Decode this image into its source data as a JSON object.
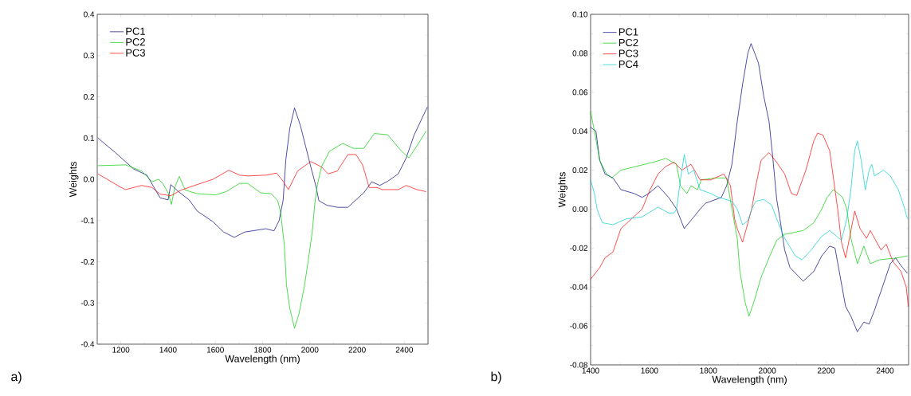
{
  "chart_data": [
    {
      "type": "line",
      "xlabel": "Wavelength (nm)",
      "ylabel": "Weights",
      "annotations": [
        "a)"
      ],
      "legend": "top left",
      "grid": false,
      "xlim": [
        1100,
        2500
      ],
      "xticks": [
        1200,
        1400,
        1600,
        1800,
        2000,
        2200,
        2400
      ],
      "ylim": [
        -0.4,
        0.4
      ],
      "yticks": [
        {
          "value": -0.4,
          "label": "-0.4"
        },
        {
          "value": -0.3,
          "label": "-0.3"
        },
        {
          "value": -0.2,
          "label": "-0.2"
        },
        {
          "value": -0.1,
          "label": "-0.1"
        },
        {
          "value": 0,
          "label": "0.0"
        },
        {
          "value": 0.1,
          "label": "0.1"
        },
        {
          "value": 0.2,
          "label": "0.2"
        },
        {
          "value": 0.3,
          "label": "0.3"
        },
        {
          "value": 0.4,
          "label": "0.4"
        }
      ],
      "series": [
        {
          "name": "PC1",
          "color": "#000080",
          "x": [
            1103,
            1176,
            1254,
            1310,
            1366,
            1400,
            1411,
            1444,
            1489,
            1523,
            1590,
            1635,
            1680,
            1724,
            1814,
            1848,
            1870,
            1887,
            1898,
            1915,
            1935,
            1960,
            1982,
            2004,
            2027,
            2038,
            2072,
            2116,
            2161,
            2195,
            2228,
            2262,
            2296,
            2329,
            2374,
            2408,
            2441,
            2497
          ],
          "values": [
            0.1,
            0.065,
            0.025,
            0.01,
            -0.045,
            -0.05,
            -0.013,
            -0.03,
            -0.05,
            -0.077,
            -0.103,
            -0.128,
            -0.141,
            -0.128,
            -0.12,
            -0.125,
            -0.1,
            -0.05,
            0.046,
            0.124,
            0.173,
            0.13,
            0.08,
            0.03,
            -0.02,
            -0.052,
            -0.063,
            -0.068,
            -0.068,
            -0.05,
            -0.033,
            -0.006,
            -0.015,
            -0.005,
            0.013,
            0.052,
            0.107,
            0.175
          ]
        },
        {
          "name": "PC2",
          "color": "#00cc00",
          "x": [
            1103,
            1220,
            1288,
            1332,
            1360,
            1377,
            1400,
            1414,
            1428,
            1447,
            1472,
            1523,
            1601,
            1646,
            1702,
            1736,
            1792,
            1836,
            1864,
            1876,
            1892,
            1901,
            1915,
            1935,
            1954,
            1976,
            1993,
            2010,
            2021,
            2032,
            2049,
            2083,
            2139,
            2184,
            2228,
            2273,
            2329,
            2385,
            2419,
            2452,
            2492
          ],
          "values": [
            0.033,
            0.035,
            0.02,
            -0.006,
            0.0,
            -0.01,
            -0.033,
            -0.061,
            -0.02,
            0.007,
            -0.026,
            -0.035,
            -0.038,
            -0.03,
            -0.01,
            -0.01,
            -0.033,
            -0.035,
            -0.052,
            -0.08,
            -0.16,
            -0.256,
            -0.313,
            -0.361,
            -0.326,
            -0.262,
            -0.198,
            -0.128,
            -0.058,
            -0.013,
            0.03,
            0.068,
            0.087,
            0.075,
            0.075,
            0.111,
            0.108,
            0.07,
            0.052,
            0.08,
            0.117
          ]
        },
        {
          "name": "PC3",
          "color": "#ff0000",
          "x": [
            1103,
            1142,
            1198,
            1220,
            1288,
            1332,
            1366,
            1411,
            1456,
            1512,
            1590,
            1657,
            1702,
            1736,
            1814,
            1859,
            1887,
            1909,
            1948,
            2004,
            2049,
            2077,
            2116,
            2161,
            2195,
            2223,
            2251,
            2284,
            2307,
            2374,
            2408,
            2452,
            2492
          ],
          "values": [
            0.013,
            0.0,
            -0.019,
            -0.025,
            -0.015,
            -0.02,
            -0.036,
            -0.04,
            -0.026,
            -0.015,
            0.0,
            0.022,
            0.01,
            0.008,
            0.01,
            0.015,
            -0.005,
            -0.025,
            0.02,
            0.043,
            0.03,
            0.013,
            0.02,
            0.06,
            0.06,
            0.035,
            -0.02,
            -0.02,
            -0.025,
            -0.025,
            -0.015,
            -0.025,
            -0.03
          ]
        }
      ]
    },
    {
      "type": "line",
      "xlabel": "Wavelength (nm)",
      "ylabel": "Weights",
      "annotations": [
        "b)"
      ],
      "legend": "top left",
      "grid": false,
      "xlim": [
        1400,
        2480
      ],
      "xticks": [
        1400,
        1600,
        1800,
        2000,
        2200,
        2400
      ],
      "ylim": [
        -0.08,
        0.1
      ],
      "yticks": [
        {
          "value": -0.08,
          "label": "-0.08"
        },
        {
          "value": -0.06,
          "label": "-0.06"
        },
        {
          "value": -0.04,
          "label": "-0.04"
        },
        {
          "value": -0.02,
          "label": "-0.02"
        },
        {
          "value": 0,
          "label": "0.00"
        },
        {
          "value": 0.02,
          "label": "0.02"
        },
        {
          "value": 0.04,
          "label": "0.04"
        },
        {
          "value": 0.06,
          "label": "0.06"
        },
        {
          "value": 0.08,
          "label": "0.08"
        },
        {
          "value": 0.1,
          "label": "0.10"
        }
      ],
      "series": [
        {
          "name": "PC1",
          "color": "#000080",
          "x": [
            1400,
            1418,
            1431,
            1449,
            1476,
            1503,
            1548,
            1575,
            1597,
            1629,
            1665,
            1692,
            1718,
            1745,
            1772,
            1790,
            1844,
            1862,
            1880,
            1898,
            1916,
            1934,
            1945,
            1970,
            1988,
            2006,
            2019,
            2032,
            2043,
            2059,
            2077,
            2122,
            2158,
            2185,
            2212,
            2230,
            2248,
            2266,
            2284,
            2306,
            2328,
            2346,
            2364,
            2391,
            2418,
            2436,
            2454,
            2476
          ],
          "values": [
            0.042,
            0.04,
            0.025,
            0.018,
            0.016,
            0.01,
            0.008,
            0.006,
            0.008,
            0.012,
            0.006,
            0.0,
            -0.01,
            -0.005,
            0.0,
            0.003,
            0.006,
            0.012,
            0.023,
            0.045,
            0.064,
            0.08,
            0.085,
            0.075,
            0.058,
            0.045,
            0.026,
            0.005,
            -0.005,
            -0.021,
            -0.03,
            -0.037,
            -0.032,
            -0.024,
            -0.019,
            -0.02,
            -0.035,
            -0.05,
            -0.055,
            -0.063,
            -0.058,
            -0.059,
            -0.052,
            -0.04,
            -0.028,
            -0.025,
            -0.029,
            -0.033
          ]
        },
        {
          "name": "PC2",
          "color": "#00cc00",
          "x": [
            1400,
            1413,
            1431,
            1454,
            1472,
            1503,
            1557,
            1611,
            1656,
            1692,
            1705,
            1727,
            1741,
            1763,
            1776,
            1826,
            1862,
            1880,
            1898,
            1907,
            1925,
            1938,
            1956,
            1979,
            2006,
            2032,
            2059,
            2122,
            2158,
            2185,
            2203,
            2225,
            2256,
            2270,
            2284,
            2306,
            2328,
            2350,
            2382,
            2445,
            2476
          ],
          "values": [
            0.05,
            0.04,
            0.025,
            0.018,
            0.016,
            0.02,
            0.022,
            0.024,
            0.026,
            0.023,
            0.012,
            0.008,
            0.012,
            0.01,
            0.015,
            0.016,
            0.016,
            0.0,
            -0.015,
            -0.032,
            -0.048,
            -0.055,
            -0.047,
            -0.035,
            -0.025,
            -0.016,
            -0.013,
            -0.011,
            -0.007,
            0.0,
            0.006,
            0.01,
            0.006,
            0.0,
            -0.015,
            -0.028,
            -0.019,
            -0.028,
            -0.026,
            -0.025,
            -0.024
          ]
        },
        {
          "name": "PC3",
          "color": "#ff0000",
          "x": [
            1400,
            1431,
            1449,
            1476,
            1503,
            1539,
            1575,
            1602,
            1629,
            1656,
            1683,
            1710,
            1741,
            1772,
            1808,
            1853,
            1875,
            1889,
            1898,
            1916,
            1929,
            1947,
            1961,
            1979,
            2006,
            2032,
            2059,
            2082,
            2100,
            2131,
            2158,
            2171,
            2189,
            2212,
            2230,
            2239,
            2252,
            2266,
            2279,
            2297,
            2315,
            2337,
            2350,
            2386,
            2404,
            2427,
            2454,
            2472,
            2479
          ],
          "values": [
            -0.036,
            -0.03,
            -0.025,
            -0.022,
            -0.01,
            -0.005,
            0.0,
            0.01,
            0.018,
            0.022,
            0.024,
            0.02,
            0.023,
            0.015,
            0.015,
            0.018,
            0.012,
            -0.005,
            -0.01,
            -0.017,
            -0.01,
            0.0,
            0.012,
            0.025,
            0.029,
            0.024,
            0.018,
            0.008,
            0.007,
            0.02,
            0.035,
            0.039,
            0.038,
            0.03,
            0.01,
            0.0,
            -0.017,
            -0.025,
            -0.015,
            -0.001,
            -0.01,
            -0.015,
            -0.011,
            -0.021,
            -0.018,
            -0.027,
            -0.032,
            -0.04,
            -0.05
          ]
        },
        {
          "name": "PC4",
          "color": "#00cccc",
          "x": [
            1400,
            1413,
            1422,
            1440,
            1476,
            1521,
            1575,
            1629,
            1665,
            1683,
            1692,
            1705,
            1718,
            1732,
            1750,
            1772,
            1808,
            1835,
            1880,
            1898,
            1916,
            1934,
            1947,
            1961,
            1988,
            2015,
            2032,
            2059,
            2095,
            2118,
            2149,
            2185,
            2212,
            2252,
            2270,
            2284,
            2297,
            2306,
            2319,
            2333,
            2346,
            2355,
            2364,
            2395,
            2418,
            2445,
            2463,
            2476
          ],
          "values": [
            0.015,
            0.008,
            0.0,
            -0.007,
            -0.008,
            -0.005,
            -0.004,
            0.001,
            -0.002,
            -0.002,
            0.0,
            0.015,
            0.028,
            0.018,
            0.02,
            0.01,
            0.008,
            0.006,
            0.004,
            0.0,
            -0.008,
            -0.006,
            0.0,
            0.004,
            0.005,
            0.002,
            -0.005,
            -0.015,
            -0.024,
            -0.026,
            -0.021,
            -0.014,
            -0.011,
            -0.016,
            -0.005,
            0.01,
            0.03,
            0.035,
            0.025,
            0.01,
            0.02,
            0.023,
            0.017,
            0.02,
            0.017,
            0.01,
            0.002,
            -0.005
          ]
        }
      ]
    }
  ]
}
